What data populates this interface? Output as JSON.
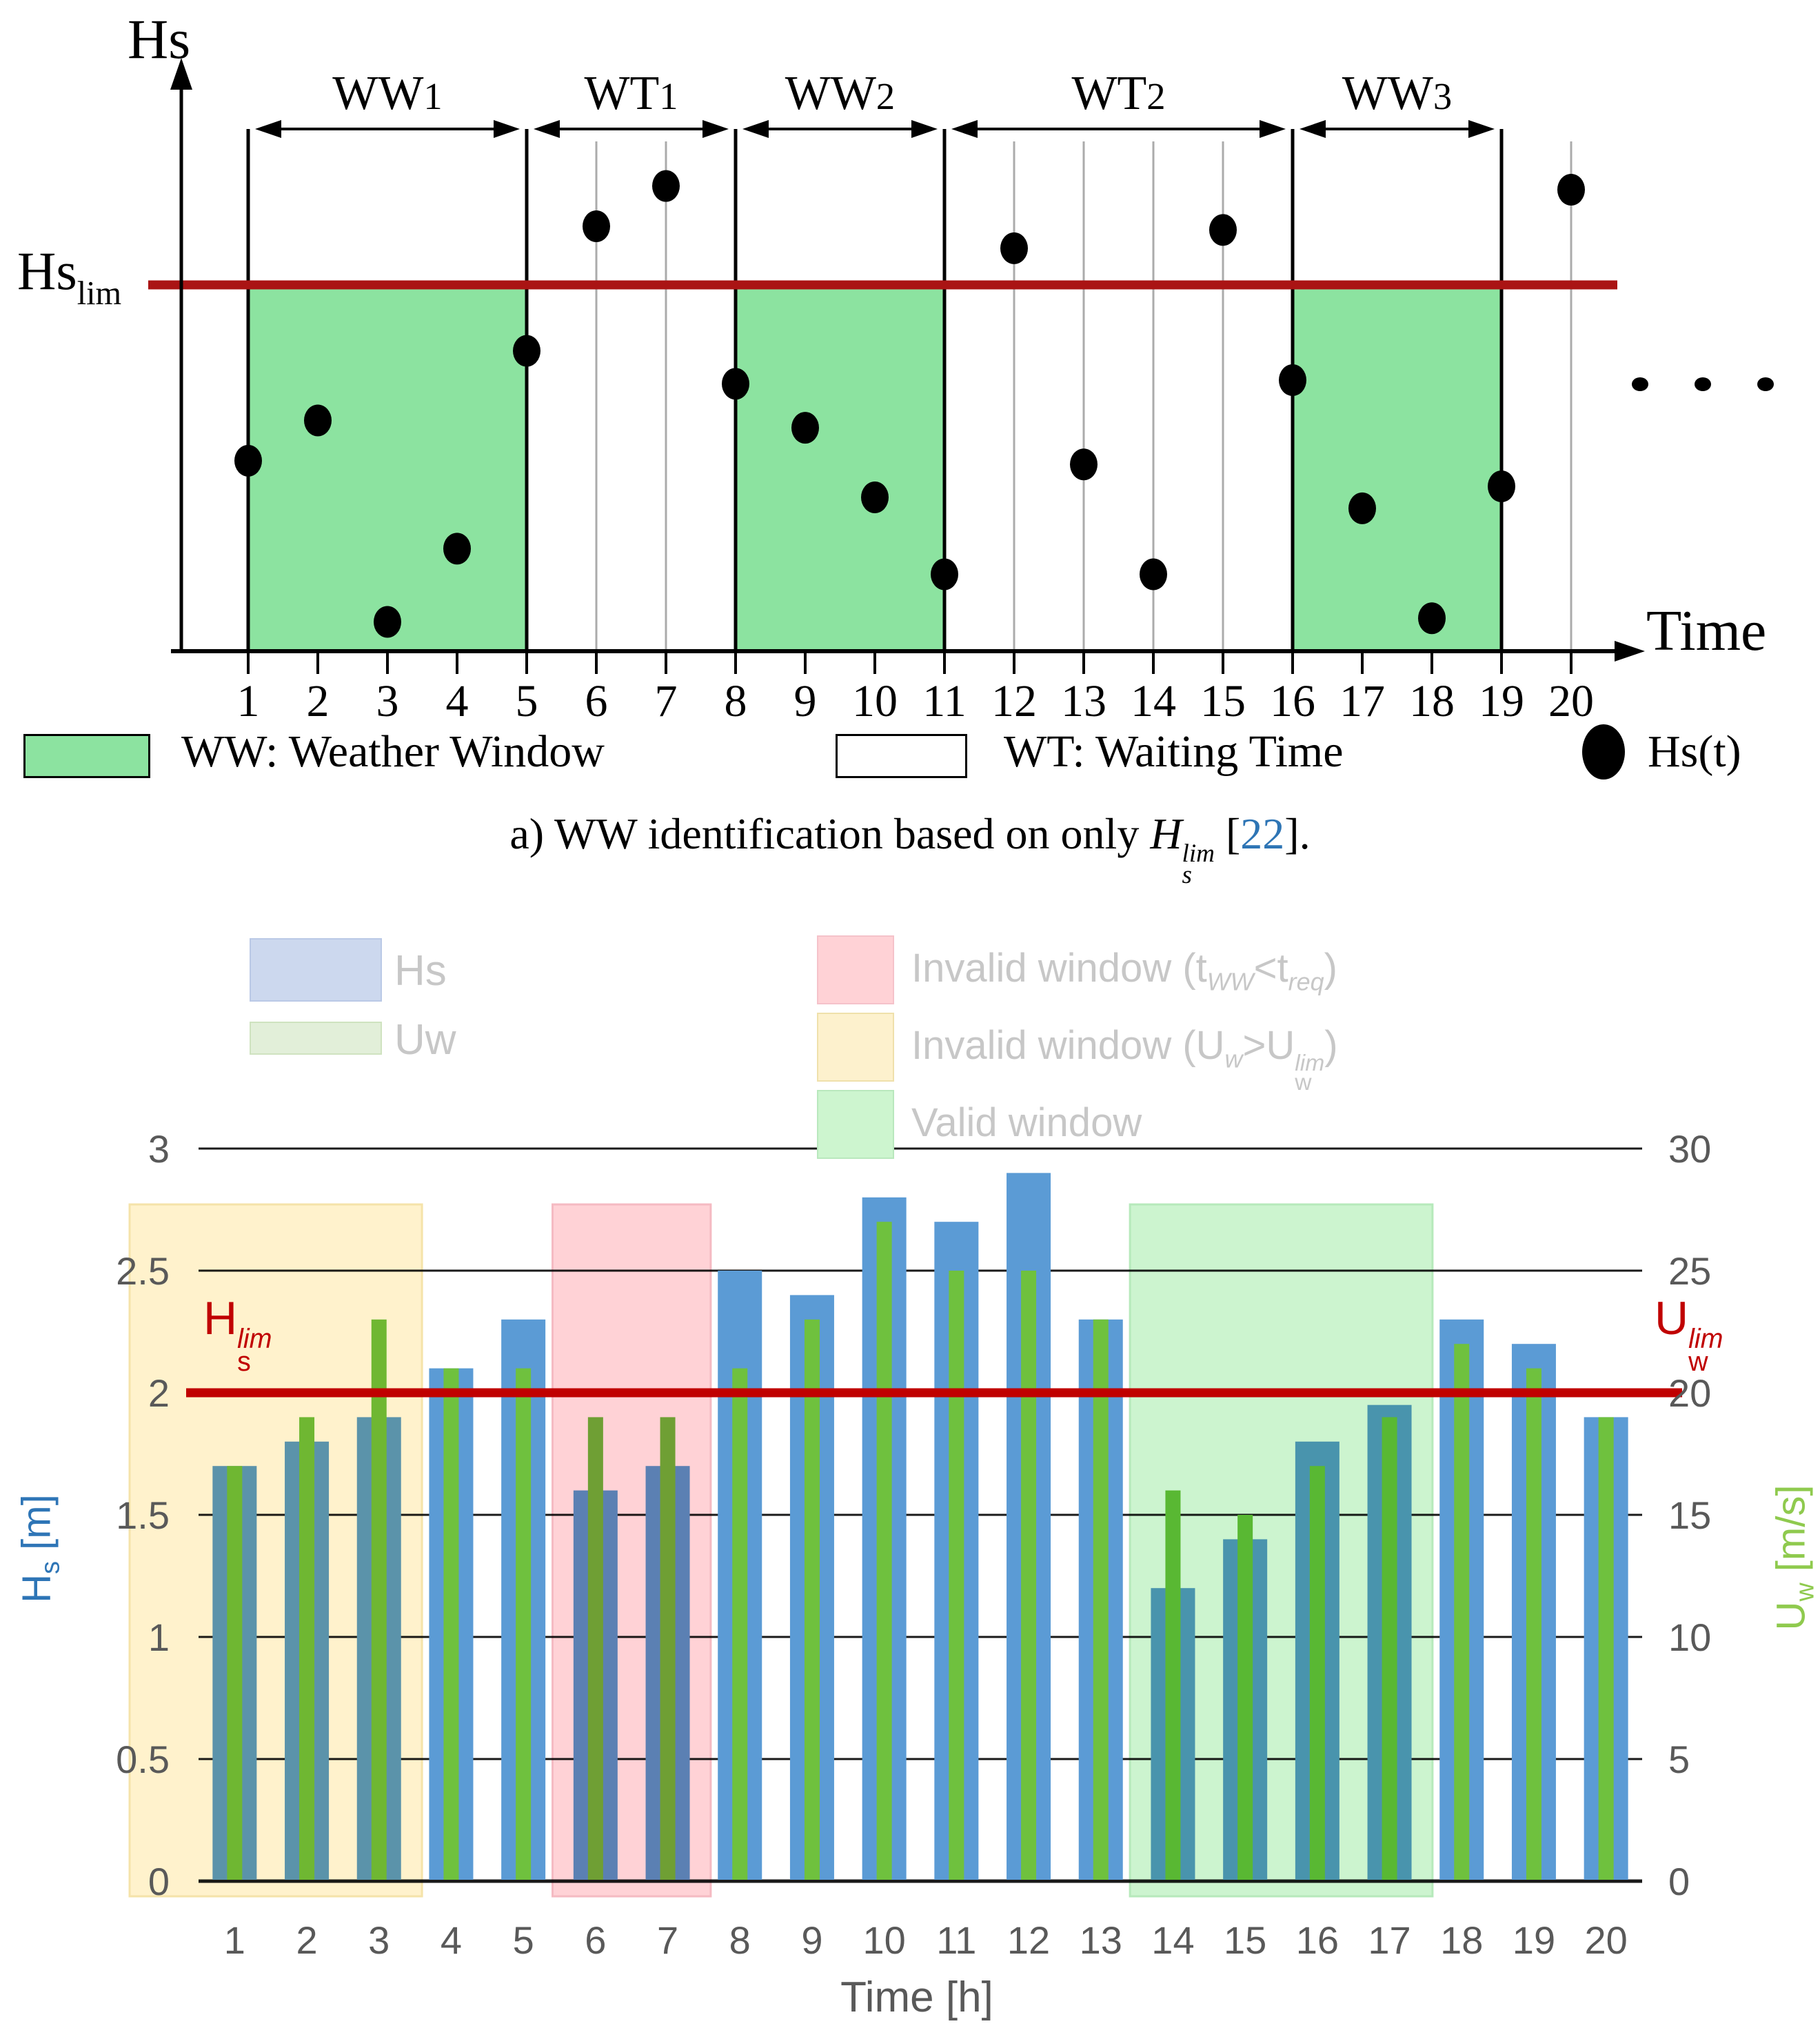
{
  "colors": {
    "panel_a": {
      "window_green": "#8ce3a0",
      "lim_line": "#aa1414",
      "gray_line": "#ababab",
      "point": "#000000"
    },
    "panel_b": {
      "bar_hs": "#5b9bd5",
      "bar_uw": "#6fc13e",
      "lim_line": "#c00000",
      "grid": "#1a1a1a",
      "tick_text": "#595959",
      "legend_text": "#c7c7c7",
      "hs_axis_text": "#2e75b6",
      "uw_axis_text": "#8fca4e",
      "region_invalid_short": "#ffd2d6",
      "region_invalid_short_border": "#f5bac2",
      "region_invalid_uw": "#fff2cc",
      "region_invalid_uw_border": "#f5e3a9",
      "region_valid": "#ccf4cf",
      "region_valid_border": "#b6e9bb"
    }
  },
  "panel_a": {
    "y_axis_title": "Hs",
    "x_axis_title": "Time",
    "lim_label": {
      "base": "Hs",
      "sub": "lim"
    },
    "legend": [
      {
        "type": "ww",
        "label": "WW: Weather Window"
      },
      {
        "type": "wt",
        "label": "WT: Waiting Time"
      },
      {
        "type": "point",
        "label": "Hs(t)"
      }
    ],
    "caption": {
      "lead": "a) WW identification based on only ",
      "math": {
        "base": "H",
        "sub": "s",
        "sup": "lim"
      },
      "cite_pre": " [",
      "cite": "22",
      "cite_post": "]."
    }
  },
  "panel_b": {
    "hs_lim_label": {
      "base": "H",
      "sub": "s",
      "sup": "lim"
    },
    "uw_lim_label": {
      "base": "U",
      "sub": "w",
      "sup": "lim"
    },
    "y_left_title": {
      "base": "H",
      "sub": "s",
      "unit": " [m]"
    },
    "y_right_title": {
      "base": "U",
      "sub": "w",
      "unit": " [m/s]"
    },
    "x_title": "Time [h]",
    "legend_series": [
      {
        "key": "hs",
        "label": "Hs"
      },
      {
        "key": "uw",
        "label": "Uw"
      }
    ],
    "legend_regions": [
      {
        "key": "invalid_short",
        "p0": "Invalid window (t",
        "p1": "WW",
        "p2": "<t",
        "p3": "req",
        "p4": ")"
      },
      {
        "key": "invalid_uw",
        "p0": "Invalid window (U",
        "p1": "w",
        "p2": ">U",
        "sup": "lim",
        "sub": "w",
        "p4": ")"
      },
      {
        "key": "valid",
        "label": "Valid window"
      }
    ]
  },
  "chart_data": [
    {
      "id": "panel_a",
      "type": "scatter",
      "title": "WW identification based on only Hs_lim",
      "xlabel": "Time",
      "ylabel": "Hs",
      "x": [
        1,
        2,
        3,
        4,
        5,
        6,
        7,
        8,
        9,
        10,
        11,
        12,
        13,
        14,
        15,
        16,
        17,
        18,
        19,
        20
      ],
      "hs_relative_to_lim": [
        0.52,
        0.63,
        0.08,
        0.28,
        0.82,
        1.16,
        1.27,
        0.73,
        0.61,
        0.42,
        0.21,
        1.1,
        0.51,
        0.21,
        1.15,
        0.74,
        0.39,
        0.09,
        0.45,
        1.26
      ],
      "hs_lim": 1.0,
      "windows": [
        {
          "name": "WW1",
          "kind": "weather_window",
          "from": 1,
          "to": 5
        },
        {
          "name": "WT1",
          "kind": "waiting_time",
          "from": 5,
          "to": 8
        },
        {
          "name": "WW2",
          "kind": "weather_window",
          "from": 8,
          "to": 11
        },
        {
          "name": "WT2",
          "kind": "waiting_time",
          "from": 11,
          "to": 16
        },
        {
          "name": "WW3",
          "kind": "weather_window",
          "from": 16,
          "to": 19
        }
      ],
      "boundary_times": [
        1,
        5,
        8,
        11,
        16,
        19
      ],
      "gridline_times": [
        6,
        7,
        12,
        13,
        14,
        15,
        20
      ],
      "x_ticks": [
        1,
        2,
        3,
        4,
        5,
        6,
        7,
        8,
        9,
        10,
        11,
        12,
        13,
        14,
        15,
        16,
        17,
        18,
        19,
        20
      ],
      "ellipsis_count": 3
    },
    {
      "id": "panel_b",
      "type": "bar",
      "x": [
        1,
        2,
        3,
        4,
        5,
        6,
        7,
        8,
        9,
        10,
        11,
        12,
        13,
        14,
        15,
        16,
        17,
        18,
        19,
        20
      ],
      "series": [
        {
          "name": "Hs",
          "axis": "left",
          "unit": "m",
          "values": [
            1.7,
            1.8,
            1.9,
            2.1,
            2.3,
            1.6,
            1.7,
            2.5,
            2.4,
            2.8,
            2.7,
            2.9,
            2.3,
            1.2,
            1.4,
            1.8,
            1.95,
            2.3,
            2.2,
            1.9
          ]
        },
        {
          "name": "Uw",
          "axis": "right",
          "unit": "m/s",
          "values": [
            17,
            19,
            23,
            21,
            21,
            19,
            19,
            21,
            23,
            27,
            25,
            25,
            23,
            16,
            15,
            17,
            19,
            22,
            21,
            19
          ]
        }
      ],
      "ylim_left": [
        0,
        3
      ],
      "yticks_left": [
        0,
        0.5,
        1,
        1.5,
        2,
        2.5,
        3
      ],
      "ylim_right": [
        0,
        30
      ],
      "yticks_right": [
        0,
        5,
        10,
        15,
        20,
        25,
        30
      ],
      "hs_lim": 2.0,
      "uw_lim": 20,
      "regions": [
        {
          "kind": "invalid_uw",
          "from": 1,
          "to": 3
        },
        {
          "kind": "invalid_short",
          "from": 6,
          "to": 7
        },
        {
          "kind": "valid",
          "from": 14,
          "to": 17
        }
      ],
      "xlabel": "Time [h]",
      "grid": true
    }
  ]
}
